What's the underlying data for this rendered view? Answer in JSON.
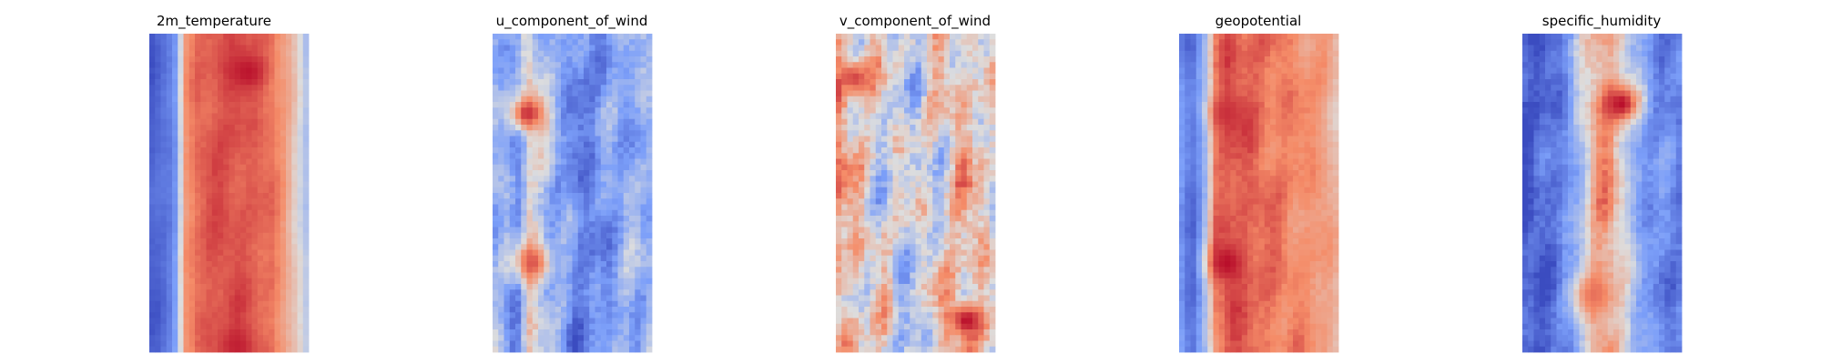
{
  "chart_data": [
    {
      "type": "heatmap",
      "title": "2m_temperature",
      "colormap": "coolwarm",
      "axes": "off",
      "profile": [
        0.05,
        0.1,
        0.18,
        0.72,
        0.82,
        0.85,
        0.86,
        0.86,
        0.84,
        0.82,
        0.8,
        0.7,
        0.55,
        0.35
      ],
      "hotspots": [
        {
          "u": 0.62,
          "v": 0.12,
          "value": 0.97
        },
        {
          "u": 0.55,
          "v": 0.98,
          "value": 0.95
        }
      ]
    },
    {
      "type": "heatmap",
      "title": "u_component_of_wind",
      "colormap": "coolwarm",
      "axes": "off",
      "profile": [
        0.35,
        0.3,
        0.2,
        0.55,
        0.4,
        0.32,
        0.25,
        0.15,
        0.18,
        0.22,
        0.28,
        0.32,
        0.3,
        0.35
      ],
      "hotspots": [
        {
          "u": 0.22,
          "v": 0.25,
          "value": 0.92
        },
        {
          "u": 0.25,
          "v": 0.72,
          "value": 0.85
        }
      ]
    },
    {
      "type": "heatmap",
      "title": "v_component_of_wind",
      "colormap": "coolwarm",
      "axes": "off",
      "profile": [
        0.72,
        0.62,
        0.55,
        0.5,
        0.48,
        0.45,
        0.44,
        0.46,
        0.5,
        0.55,
        0.6,
        0.62,
        0.55,
        0.45
      ],
      "hotspots": [
        {
          "u": 0.82,
          "v": 0.9,
          "value": 0.98
        },
        {
          "u": 0.12,
          "v": 0.14,
          "value": 0.88
        }
      ]
    },
    {
      "type": "heatmap",
      "title": "geopotential",
      "colormap": "coolwarm",
      "axes": "off",
      "profile": [
        0.25,
        0.08,
        0.3,
        0.78,
        0.86,
        0.84,
        0.82,
        0.8,
        0.78,
        0.76,
        0.74,
        0.72,
        0.7,
        0.6
      ],
      "hotspots": [
        {
          "u": 0.3,
          "v": 0.72,
          "value": 0.98
        },
        {
          "u": 0.3,
          "v": 0.25,
          "value": 0.92
        }
      ]
    },
    {
      "type": "heatmap",
      "title": "specific_humidity",
      "colormap": "coolwarm",
      "axes": "off",
      "profile": [
        0.04,
        0.06,
        0.1,
        0.15,
        0.25,
        0.45,
        0.68,
        0.72,
        0.55,
        0.35,
        0.25,
        0.2,
        0.18,
        0.15
      ],
      "hotspots": [
        {
          "u": 0.62,
          "v": 0.22,
          "value": 0.98
        },
        {
          "u": 0.45,
          "v": 0.82,
          "value": 0.8
        }
      ]
    }
  ]
}
